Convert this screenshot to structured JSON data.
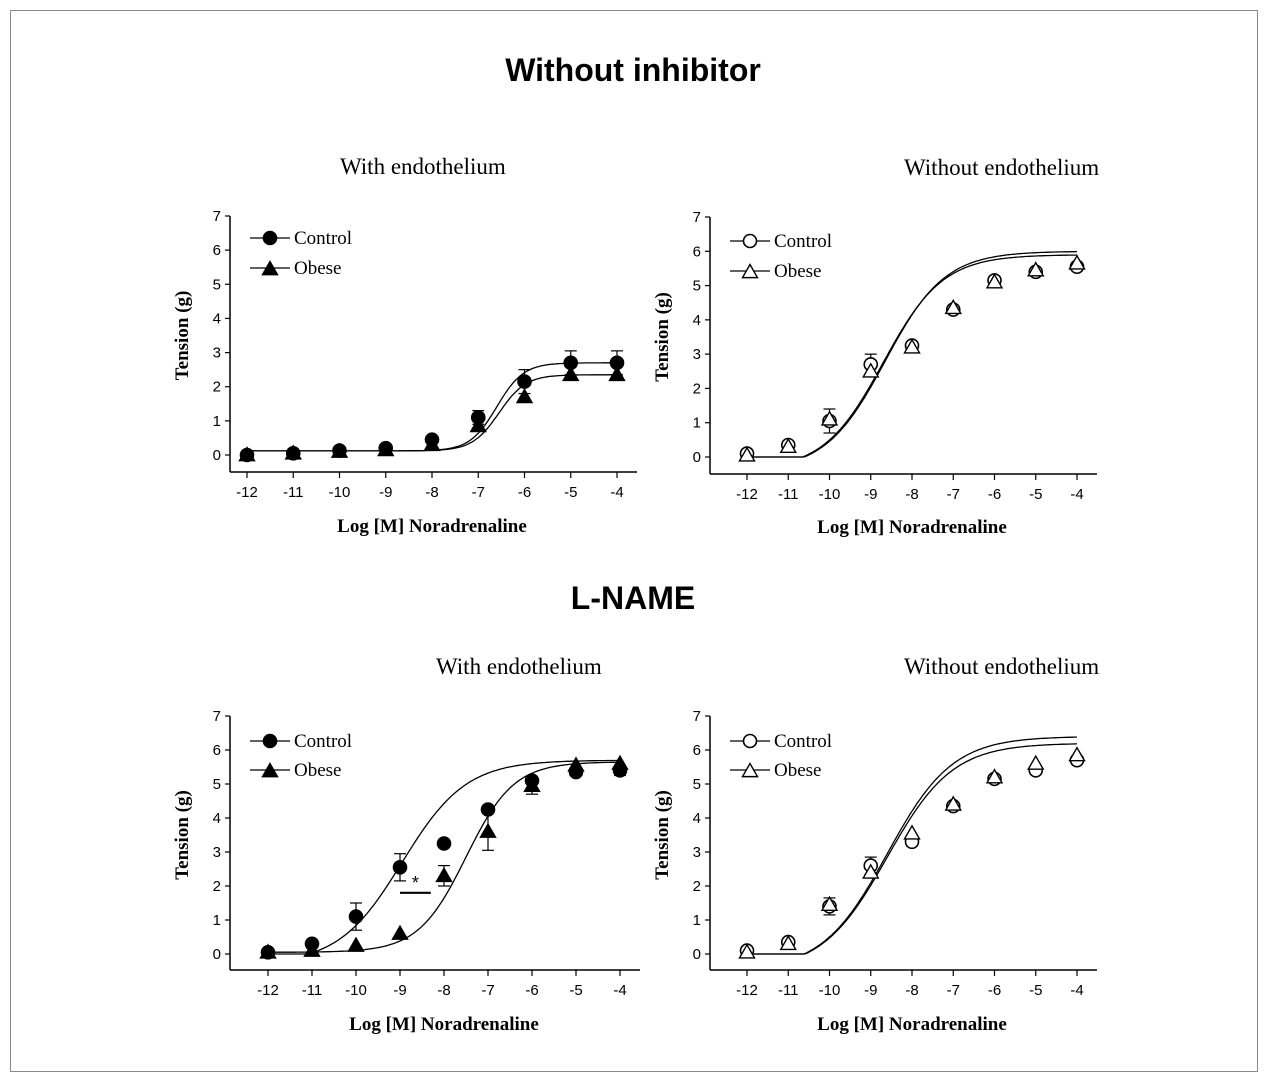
{
  "section_titles": [
    "Without inhibitor",
    "L-NAME"
  ],
  "chart_data": [
    {
      "type": "line",
      "section": "Without inhibitor",
      "title": "With endothelium",
      "xlabel": "Log [M] Noradrenaline",
      "ylabel": "Tension (g)",
      "xlim": [
        -12,
        -4
      ],
      "ylim": [
        0,
        7
      ],
      "x": [
        -12,
        -11,
        -10,
        -9,
        -8,
        -7,
        -6,
        -5,
        -4
      ],
      "legend_position": "top-left",
      "grid": false,
      "series": [
        {
          "name": "Control",
          "marker": "circle",
          "filled": true,
          "values": [
            0.0,
            0.05,
            0.13,
            0.2,
            0.45,
            1.1,
            2.15,
            2.7,
            2.7
          ],
          "error": [
            0,
            0,
            0,
            0,
            0,
            0.2,
            0.35,
            0.35,
            0.35
          ],
          "fit": {
            "bottom": 0.12,
            "top": 2.7,
            "logEC50": -6.6,
            "hill": 1.5
          }
        },
        {
          "name": "Obese",
          "marker": "triangle",
          "filled": true,
          "values": [
            0.0,
            0.05,
            0.1,
            0.15,
            0.3,
            0.85,
            1.7,
            2.35,
            2.35
          ],
          "error": [
            0,
            0,
            0,
            0,
            0,
            0,
            0,
            0,
            0
          ],
          "fit": {
            "bottom": 0.12,
            "top": 2.35,
            "logEC50": -6.55,
            "hill": 1.5
          }
        }
      ],
      "annotations": []
    },
    {
      "type": "line",
      "section": "Without inhibitor",
      "title": "Without endothelium",
      "xlabel": "Log [M] Noradrenaline",
      "ylabel": "Tension (g)",
      "xlim": [
        -12,
        -4
      ],
      "ylim": [
        0,
        7
      ],
      "x": [
        -12,
        -11,
        -10,
        -9,
        -8,
        -7,
        -6,
        -5,
        -4
      ],
      "legend_position": "top-left",
      "grid": false,
      "series": [
        {
          "name": "Control",
          "marker": "circle",
          "filled": false,
          "values": [
            0.1,
            0.35,
            1.05,
            2.7,
            3.25,
            4.3,
            5.15,
            5.4,
            5.55
          ],
          "error": [
            0,
            0,
            0.35,
            0.3,
            0,
            0,
            0,
            0,
            0
          ],
          "fit": {
            "bottom": -0.4,
            "top": 5.9,
            "logEC50": -8.7,
            "hill": 0.6
          }
        },
        {
          "name": "Obese",
          "marker": "triangle",
          "filled": false,
          "values": [
            0.05,
            0.3,
            1.1,
            2.5,
            3.2,
            4.35,
            5.1,
            5.45,
            5.65
          ],
          "error": [
            0,
            0,
            0,
            0,
            0,
            0,
            0,
            0,
            0
          ],
          "fit": {
            "bottom": -0.4,
            "top": 6.0,
            "logEC50": -8.65,
            "hill": 0.6
          }
        }
      ],
      "annotations": []
    },
    {
      "type": "line",
      "section": "L-NAME",
      "title": "With endothelium",
      "xlabel": "Log [M] Noradrenaline",
      "ylabel": "Tension (g)",
      "xlim": [
        -12,
        -4
      ],
      "ylim": [
        0,
        7
      ],
      "x": [
        -12,
        -11,
        -10,
        -9,
        -8,
        -7,
        -6,
        -5,
        -4
      ],
      "legend_position": "top-left",
      "grid": false,
      "series": [
        {
          "name": "Control",
          "marker": "circle",
          "filled": true,
          "values": [
            0.05,
            0.3,
            1.1,
            2.55,
            3.25,
            4.25,
            5.1,
            5.35,
            5.4
          ],
          "error": [
            0,
            0,
            0.4,
            0.4,
            0,
            0,
            0,
            0,
            0.15
          ],
          "fit": {
            "bottom": -0.3,
            "top": 5.7,
            "logEC50": -8.95,
            "hill": 0.6
          }
        },
        {
          "name": "Obese",
          "marker": "triangle",
          "filled": true,
          "values": [
            0.05,
            0.1,
            0.25,
            0.6,
            2.3,
            3.6,
            4.95,
            5.55,
            5.6
          ],
          "error": [
            0,
            0,
            0,
            0,
            0.3,
            0.55,
            0.25,
            0,
            0
          ],
          "fit": {
            "bottom": 0.05,
            "top": 5.65,
            "logEC50": -7.5,
            "hill": 0.8
          }
        }
      ],
      "annotations": [
        {
          "text": "*",
          "x_from": -9,
          "x_to": -8.3,
          "y": 1.8
        }
      ]
    },
    {
      "type": "line",
      "section": "L-NAME",
      "title": "Without endothelium",
      "xlabel": "Log [M] Noradrenaline",
      "ylabel": "Tension (g)",
      "xlim": [
        -12,
        -4
      ],
      "ylim": [
        0,
        7
      ],
      "x": [
        -12,
        -11,
        -10,
        -9,
        -8,
        -7,
        -6,
        -5,
        -4
      ],
      "legend_position": "top-left",
      "grid": false,
      "series": [
        {
          "name": "Control",
          "marker": "circle",
          "filled": false,
          "values": [
            0.1,
            0.35,
            1.4,
            2.6,
            3.3,
            4.35,
            5.15,
            5.4,
            5.7
          ],
          "error": [
            0,
            0,
            0.25,
            0.25,
            0,
            0,
            0,
            0,
            0
          ],
          "fit": {
            "bottom": -0.5,
            "top": 6.2,
            "logEC50": -8.6,
            "hill": 0.55
          }
        },
        {
          "name": "Obese",
          "marker": "triangle",
          "filled": false,
          "values": [
            0.05,
            0.3,
            1.45,
            2.4,
            3.55,
            4.4,
            5.2,
            5.6,
            5.85
          ],
          "error": [
            0,
            0,
            0,
            0,
            0,
            0,
            0,
            0,
            0
          ],
          "fit": {
            "bottom": -0.5,
            "top": 6.4,
            "logEC50": -8.6,
            "hill": 0.55
          }
        }
      ],
      "annotations": []
    }
  ]
}
